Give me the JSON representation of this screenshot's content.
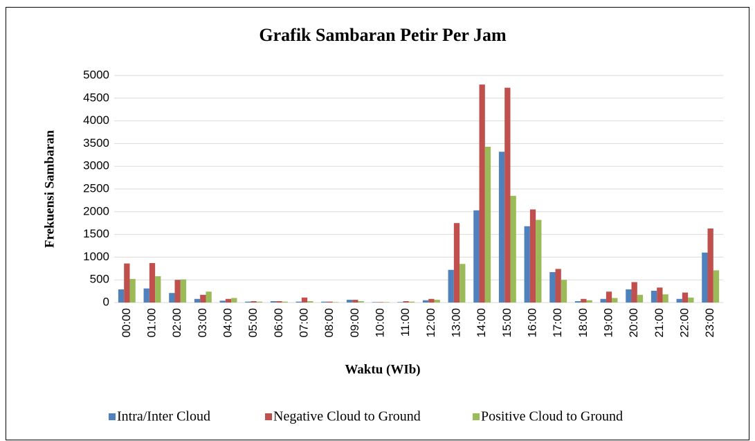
{
  "chart_data": {
    "type": "bar",
    "title": "Grafik Sambaran Petir Per Jam",
    "x_label": "Waktu (WIb)",
    "y_label": "Frekuensi Sambaran",
    "categories": [
      "00:00",
      "01:00",
      "02:00",
      "03:00",
      "04:00",
      "05:00",
      "06:00",
      "07:00",
      "08:00",
      "09:00",
      "10:00",
      "11:00",
      "12:00",
      "13:00",
      "14:00",
      "15:00",
      "16:00",
      "17:00",
      "18:00",
      "19:00",
      "20:00",
      "21:00",
      "22:00",
      "23:00"
    ],
    "series": [
      {
        "name": "Intra/Inter Cloud",
        "color": "#4f81bd",
        "values": [
          290,
          310,
          210,
          80,
          40,
          20,
          30,
          20,
          20,
          60,
          10,
          10,
          50,
          720,
          2030,
          3320,
          1680,
          670,
          30,
          80,
          290,
          260,
          80,
          1100
        ]
      },
      {
        "name": "Negative Cloud to Ground",
        "color": "#c0504d",
        "values": [
          860,
          870,
          500,
          170,
          80,
          30,
          30,
          110,
          20,
          60,
          10,
          30,
          80,
          1750,
          4800,
          4730,
          2050,
          740,
          80,
          240,
          450,
          330,
          220,
          1630
        ]
      },
      {
        "name": "Positive Cloud to Ground",
        "color": "#9bbb59",
        "values": [
          520,
          580,
          510,
          240,
          100,
          20,
          20,
          30,
          10,
          30,
          10,
          20,
          60,
          850,
          3430,
          2350,
          1820,
          500,
          50,
          100,
          170,
          180,
          110,
          710
        ]
      }
    ],
    "ylim": [
      0,
      5000
    ],
    "yticks": [
      0,
      500,
      1000,
      1500,
      2000,
      2500,
      3000,
      3500,
      4000,
      4500,
      5000
    ],
    "grid": true,
    "legend": "bottom"
  }
}
